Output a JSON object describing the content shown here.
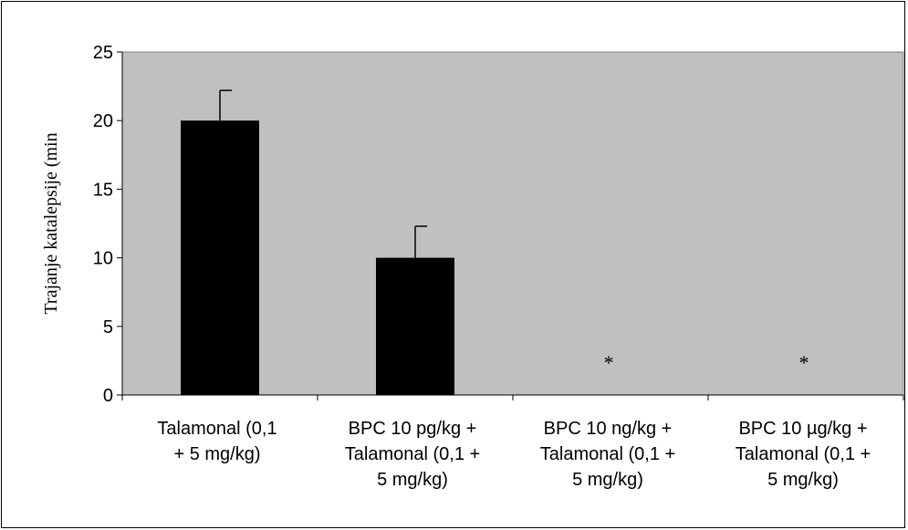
{
  "chart_data": {
    "type": "bar",
    "title": "",
    "xlabel": "",
    "ylabel": "Trajanje katalepsije (min",
    "ylim": [
      0,
      25
    ],
    "yticks": [
      0,
      5,
      10,
      15,
      20,
      25
    ],
    "categories": [
      [
        "Talamonal  (0,1",
        "+ 5 mg/kg)"
      ],
      [
        "BPC 10 pg/kg +",
        "Talamonal (0,1 +",
        "5 mg/kg)"
      ],
      [
        "BPC 10 ng/kg +",
        "Talamonal (0,1 +",
        "5 mg/kg)"
      ],
      [
        "BPC 10 µg/kg +",
        "Talamonal (0,1 +",
        "5 mg/kg)"
      ]
    ],
    "values": [
      20,
      10,
      0,
      0
    ],
    "errors": [
      2.2,
      2.3,
      0,
      0
    ],
    "annotations": [
      "",
      "",
      "*",
      "*"
    ],
    "bar_color": "#000000",
    "plot_background": "#c0c0c0",
    "grid": false,
    "legend": "none"
  }
}
